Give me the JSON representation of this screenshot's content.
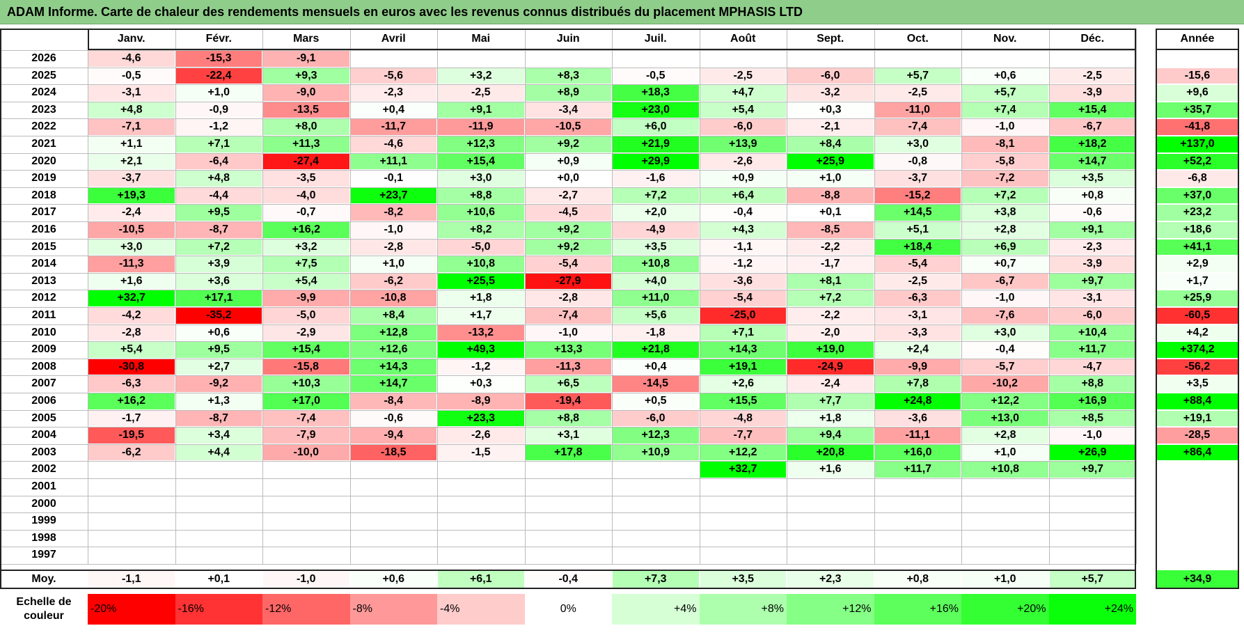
{
  "title": "ADAM Informe. Carte de chaleur des rendements mensuels en euros avec les revenus connus distribués du placement MPHASIS LTD",
  "chart_data": {
    "type": "heatmap",
    "months": [
      "Janv.",
      "Févr.",
      "Mars",
      "Avril",
      "Mai",
      "Juin",
      "Juil.",
      "Août",
      "Sept.",
      "Oct.",
      "Nov.",
      "Déc."
    ],
    "annual_header": "Année",
    "rows": [
      {
        "year": "2026",
        "values": [
          "-4,6",
          "-15,3",
          "-9,1",
          "",
          "",
          "",
          "",
          "",
          "",
          "",
          "",
          ""
        ],
        "annual": ""
      },
      {
        "year": "2025",
        "values": [
          "-0,5",
          "-22,4",
          "+9,3",
          "-5,6",
          "+3,2",
          "+8,3",
          "-0,5",
          "-2,5",
          "-6,0",
          "+5,7",
          "+0,6",
          "-2,5"
        ],
        "annual": "-15,6"
      },
      {
        "year": "2024",
        "values": [
          "-3,1",
          "+1,0",
          "-9,0",
          "-2,3",
          "-2,5",
          "+8,9",
          "+18,3",
          "+4,7",
          "-3,2",
          "-2,5",
          "+5,7",
          "-3,9"
        ],
        "annual": "+9,6"
      },
      {
        "year": "2023",
        "values": [
          "+4,8",
          "-0,9",
          "-13,5",
          "+0,4",
          "+9,1",
          "-3,4",
          "+23,0",
          "+5,4",
          "+0,3",
          "-11,0",
          "+7,4",
          "+15,4"
        ],
        "annual": "+35,7"
      },
      {
        "year": "2022",
        "values": [
          "-7,1",
          "-1,2",
          "+8,0",
          "-11,7",
          "-11,9",
          "-10,5",
          "+6,0",
          "-6,0",
          "-2,1",
          "-7,4",
          "-1,0",
          "-6,7"
        ],
        "annual": "-41,8"
      },
      {
        "year": "2021",
        "values": [
          "+1,1",
          "+7,1",
          "+11,3",
          "-4,6",
          "+12,3",
          "+9,2",
          "+21,9",
          "+13,9",
          "+8,4",
          "+3,0",
          "-8,1",
          "+18,2"
        ],
        "annual": "+137,0"
      },
      {
        "year": "2020",
        "values": [
          "+2,1",
          "-6,4",
          "-27,4",
          "+11,1",
          "+15,4",
          "+0,9",
          "+29,9",
          "-2,6",
          "+25,9",
          "-0,8",
          "-5,8",
          "+14,7"
        ],
        "annual": "+52,2"
      },
      {
        "year": "2019",
        "values": [
          "-3,7",
          "+4,8",
          "-3,5",
          "-0,1",
          "+3,0",
          "+0,0",
          "-1,6",
          "+0,9",
          "+1,0",
          "-3,7",
          "-7,2",
          "+3,5"
        ],
        "annual": "-6,8"
      },
      {
        "year": "2018",
        "values": [
          "+19,3",
          "-4,4",
          "-4,0",
          "+23,7",
          "+8,8",
          "-2,7",
          "+7,2",
          "+6,4",
          "-8,8",
          "-15,2",
          "+7,2",
          "+0,8"
        ],
        "annual": "+37,0"
      },
      {
        "year": "2017",
        "values": [
          "-2,4",
          "+9,5",
          "-0,7",
          "-8,2",
          "+10,6",
          "-4,5",
          "+2,0",
          "-0,4",
          "+0,1",
          "+14,5",
          "+3,8",
          "-0,6"
        ],
        "annual": "+23,2"
      },
      {
        "year": "2016",
        "values": [
          "-10,5",
          "-8,7",
          "+16,2",
          "-1,0",
          "+8,2",
          "+9,2",
          "-4,9",
          "+4,3",
          "-8,5",
          "+5,1",
          "+2,8",
          "+9,1"
        ],
        "annual": "+18,6"
      },
      {
        "year": "2015",
        "values": [
          "+3,0",
          "+7,2",
          "+3,2",
          "-2,8",
          "-5,0",
          "+9,2",
          "+3,5",
          "-1,1",
          "-2,2",
          "+18,4",
          "+6,9",
          "-2,3"
        ],
        "annual": "+41,1"
      },
      {
        "year": "2014",
        "values": [
          "-11,3",
          "+3,9",
          "+7,5",
          "+1,0",
          "+10,8",
          "-5,4",
          "+10,8",
          "-1,2",
          "-1,7",
          "-5,4",
          "+0,7",
          "-3,9"
        ],
        "annual": "+2,9"
      },
      {
        "year": "2013",
        "values": [
          "+1,6",
          "+3,6",
          "+5,4",
          "-6,2",
          "+25,5",
          "-27,9",
          "+4,0",
          "-3,6",
          "+8,1",
          "-2,5",
          "-6,7",
          "+9,7"
        ],
        "annual": "+1,7"
      },
      {
        "year": "2012",
        "values": [
          "+32,7",
          "+17,1",
          "-9,9",
          "-10,8",
          "+1,8",
          "-2,8",
          "+11,0",
          "-5,4",
          "+7,2",
          "-6,3",
          "-1,0",
          "-3,1"
        ],
        "annual": "+25,9"
      },
      {
        "year": "2011",
        "values": [
          "-4,2",
          "-35,2",
          "-5,0",
          "+8,4",
          "+1,7",
          "-7,4",
          "+5,6",
          "-25,0",
          "-2,2",
          "-3,1",
          "-7,6",
          "-6,0"
        ],
        "annual": "-60,5"
      },
      {
        "year": "2010",
        "values": [
          "-2,8",
          "+0,6",
          "-2,9",
          "+12,8",
          "-13,2",
          "-1,0",
          "-1,8",
          "+7,1",
          "-2,0",
          "-3,3",
          "+3,0",
          "+10,4"
        ],
        "annual": "+4,2"
      },
      {
        "year": "2009",
        "values": [
          "+5,4",
          "+9,5",
          "+15,4",
          "+12,6",
          "+49,3",
          "+13,3",
          "+21,8",
          "+14,3",
          "+19,0",
          "+2,4",
          "-0,4",
          "+11,7"
        ],
        "annual": "+374,2"
      },
      {
        "year": "2008",
        "values": [
          "-30,8",
          "+2,7",
          "-15,8",
          "+14,3",
          "-1,2",
          "-11,3",
          "+0,4",
          "+19,1",
          "-24,9",
          "-9,9",
          "-5,7",
          "-4,7"
        ],
        "annual": "-56,2"
      },
      {
        "year": "2007",
        "values": [
          "-6,3",
          "-9,2",
          "+10,3",
          "+14,7",
          "+0,3",
          "+6,5",
          "-14,5",
          "+2,6",
          "-2,4",
          "+7,8",
          "-10,2",
          "+8,8"
        ],
        "annual": "+3,5"
      },
      {
        "year": "2006",
        "values": [
          "+16,2",
          "+1,3",
          "+17,0",
          "-8,4",
          "-8,9",
          "-19,4",
          "+0,5",
          "+15,5",
          "+7,7",
          "+24,8",
          "+12,2",
          "+16,9"
        ],
        "annual": "+88,4"
      },
      {
        "year": "2005",
        "values": [
          "-1,7",
          "-8,7",
          "-7,4",
          "-0,6",
          "+23,3",
          "+8,8",
          "-6,0",
          "-4,8",
          "+1,8",
          "-3,6",
          "+13,0",
          "+8,5"
        ],
        "annual": "+19,1"
      },
      {
        "year": "2004",
        "values": [
          "-19,5",
          "+3,4",
          "-7,9",
          "-9,4",
          "-2,6",
          "+3,1",
          "+12,3",
          "-7,7",
          "+9,4",
          "-11,1",
          "+2,8",
          "-1,0"
        ],
        "annual": "-28,5"
      },
      {
        "year": "2003",
        "values": [
          "-6,2",
          "+4,4",
          "-10,0",
          "-18,5",
          "-1,5",
          "+17,8",
          "+10,9",
          "+12,2",
          "+20,8",
          "+16,0",
          "+1,0",
          "+26,9"
        ],
        "annual": "+86,4"
      },
      {
        "year": "2002",
        "values": [
          "",
          "",
          "",
          "",
          "",
          "",
          "",
          "+32,7",
          "+1,6",
          "+11,7",
          "+10,8",
          "+9,7"
        ],
        "annual": ""
      },
      {
        "year": "2001",
        "values": [
          "",
          "",
          "",
          "",
          "",
          "",
          "",
          "",
          "",
          "",
          "",
          ""
        ],
        "annual": ""
      },
      {
        "year": "2000",
        "values": [
          "",
          "",
          "",
          "",
          "",
          "",
          "",
          "",
          "",
          "",
          "",
          ""
        ],
        "annual": ""
      },
      {
        "year": "1999",
        "values": [
          "",
          "",
          "",
          "",
          "",
          "",
          "",
          "",
          "",
          "",
          "",
          ""
        ],
        "annual": ""
      },
      {
        "year": "1998",
        "values": [
          "",
          "",
          "",
          "",
          "",
          "",
          "",
          "",
          "",
          "",
          "",
          ""
        ],
        "annual": ""
      },
      {
        "year": "1997",
        "values": [
          "",
          "",
          "",
          "",
          "",
          "",
          "",
          "",
          "",
          "",
          "",
          ""
        ],
        "annual": ""
      }
    ],
    "average": {
      "label": "Moy.",
      "values": [
        "-1,1",
        "+0,1",
        "-1,0",
        "+0,6",
        "+6,1",
        "-0,4",
        "+7,3",
        "+3,5",
        "+2,3",
        "+0,8",
        "+1,0",
        "+5,7"
      ],
      "annual": "+34,9"
    },
    "scale": {
      "label": "Echelle de couleur",
      "steps": [
        {
          "label": "-20%",
          "value": -20,
          "align": "left"
        },
        {
          "label": "-16%",
          "value": -16,
          "align": "left"
        },
        {
          "label": "-12%",
          "value": -12,
          "align": "left"
        },
        {
          "label": "-8%",
          "value": -8,
          "align": "left"
        },
        {
          "label": "-4%",
          "value": -4,
          "align": "left"
        },
        {
          "label": "0%",
          "value": 0,
          "align": "center"
        },
        {
          "label": "+4%",
          "value": 4,
          "align": "right"
        },
        {
          "label": "+8%",
          "value": 8,
          "align": "right"
        },
        {
          "label": "+12%",
          "value": 12,
          "align": "right"
        },
        {
          "label": "+16%",
          "value": 16,
          "align": "right"
        },
        {
          "label": "+20%",
          "value": 20,
          "align": "right"
        },
        {
          "label": "+24%",
          "value": 24,
          "align": "right"
        }
      ]
    },
    "colors": {
      "negative_max": "#ff0000",
      "positive_max": "#00ff00",
      "neutral": "#ffffff"
    }
  }
}
